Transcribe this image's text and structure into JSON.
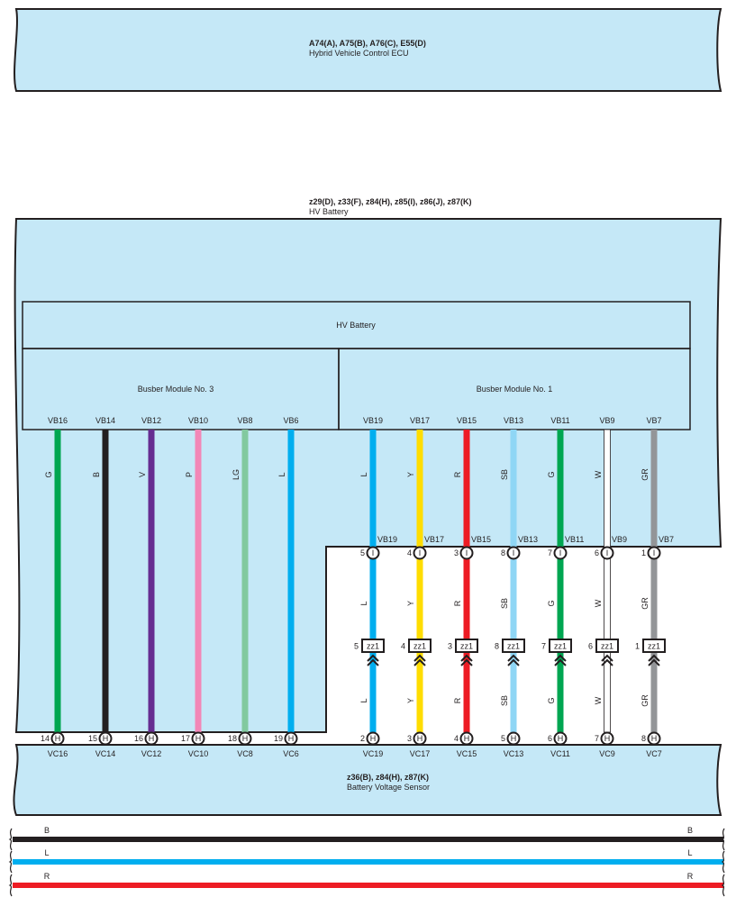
{
  "ecu": {
    "codes": "A74(A), A75(B), A76(C), E55(D)",
    "name": "Hybrid Vehicle Control ECU"
  },
  "battery": {
    "codes": "z29(D), z33(F), z84(H), z85(I), z86(J), z87(K)",
    "name": "HV Battery",
    "inner_label": "HV Battery"
  },
  "modules": [
    {
      "label": "Busber Module No. 3"
    },
    {
      "label": "Busber Module No. 1"
    }
  ],
  "sensor": {
    "codes": "z36(B), z84(H), z87(K)",
    "name": "Battery Voltage Sensor"
  },
  "colors": {
    "fill": "#c5e8f7",
    "G": "#00a651",
    "B": "#231f20",
    "V": "#662d91",
    "P": "#f287b7",
    "LG": "#82c99f",
    "L": "#00aeef",
    "Y": "#ffdd00",
    "R": "#ed1c24",
    "SB": "#8fd6f5",
    "W": "#ffffff",
    "GR": "#939598"
  },
  "left_wires": [
    {
      "terminal": "VB16",
      "color": "G",
      "pin": "14",
      "connector": "H",
      "sensor_terminal": "VC16"
    },
    {
      "terminal": "VB14",
      "color": "B",
      "pin": "15",
      "connector": "H",
      "sensor_terminal": "VC14"
    },
    {
      "terminal": "VB12",
      "color": "V",
      "pin": "16",
      "connector": "H",
      "sensor_terminal": "VC12"
    },
    {
      "terminal": "VB10",
      "color": "P",
      "pin": "17",
      "connector": "H",
      "sensor_terminal": "VC10"
    },
    {
      "terminal": "VB8",
      "color": "LG",
      "pin": "18",
      "connector": "H",
      "sensor_terminal": "VC8"
    },
    {
      "terminal": "VB6",
      "color": "L",
      "pin": "19",
      "connector": "H",
      "sensor_terminal": "VC6"
    }
  ],
  "right_wires": [
    {
      "terminal": "VB19",
      "color": "L",
      "pin_i": "5",
      "conn_i": "I",
      "zz_pin": "5",
      "zz": "zz1",
      "pin_h": "2",
      "conn_h": "H",
      "sensor_terminal": "VC19"
    },
    {
      "terminal": "VB17",
      "color": "Y",
      "pin_i": "4",
      "conn_i": "I",
      "zz_pin": "4",
      "zz": "zz1",
      "pin_h": "3",
      "conn_h": "H",
      "sensor_terminal": "VC17"
    },
    {
      "terminal": "VB15",
      "color": "R",
      "pin_i": "3",
      "conn_i": "I",
      "zz_pin": "3",
      "zz": "zz1",
      "pin_h": "4",
      "conn_h": "H",
      "sensor_terminal": "VC15"
    },
    {
      "terminal": "VB13",
      "color": "SB",
      "pin_i": "8",
      "conn_i": "I",
      "zz_pin": "8",
      "zz": "zz1",
      "pin_h": "5",
      "conn_h": "H",
      "sensor_terminal": "VC13"
    },
    {
      "terminal": "VB11",
      "color": "G",
      "pin_i": "7",
      "conn_i": "I",
      "zz_pin": "7",
      "zz": "zz1",
      "pin_h": "6",
      "conn_h": "H",
      "sensor_terminal": "VC11"
    },
    {
      "terminal": "VB9",
      "color": "W",
      "pin_i": "6",
      "conn_i": "I",
      "zz_pin": "6",
      "zz": "zz1",
      "pin_h": "7",
      "conn_h": "H",
      "sensor_terminal": "VC9"
    },
    {
      "terminal": "VB7",
      "color": "GR",
      "pin_i": "1",
      "conn_i": "I",
      "zz_pin": "1",
      "zz": "zz1",
      "pin_h": "8",
      "conn_h": "H",
      "sensor_terminal": "VC7"
    }
  ],
  "bus_lines": [
    {
      "color": "B",
      "label_left": "B",
      "label_right": "B"
    },
    {
      "color": "L",
      "label_left": "L",
      "label_right": "L"
    },
    {
      "color": "R",
      "label_left": "R",
      "label_right": "R"
    }
  ]
}
